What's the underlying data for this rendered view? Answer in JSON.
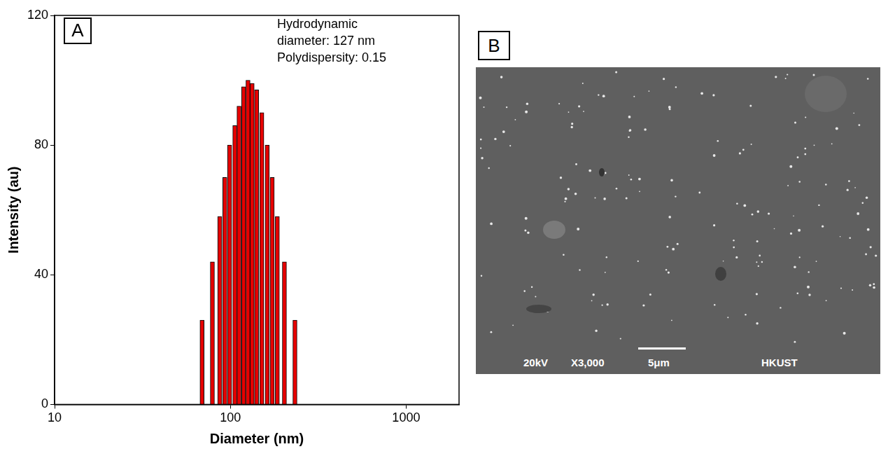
{
  "chart_data": {
    "type": "bar",
    "panel": "A",
    "x_label": "Diameter (nm)",
    "y_label": "Intensity (au)",
    "annotations": [
      "Hydrodynamic",
      "diameter: 127 nm",
      "Polydispersity: 0.15"
    ],
    "x": [
      69,
      79,
      87,
      93,
      99,
      106,
      112,
      119,
      126,
      133,
      141,
      151,
      162,
      173,
      185,
      203,
      233
    ],
    "values": [
      26,
      44,
      58,
      70,
      80,
      86,
      92,
      98,
      100,
      99,
      97,
      90,
      80,
      70,
      58,
      44,
      26
    ],
    "color": "#e60000",
    "log": "x",
    "xlim": [
      10,
      2000
    ],
    "xticks": [
      10,
      100,
      1000
    ],
    "ylim": [
      0,
      120
    ],
    "yticks": [
      0,
      40,
      80,
      120
    ],
    "grid": false
  },
  "image": {
    "panel": "B",
    "voltage": "20kV",
    "magnification": "X3,000",
    "scale_bar": "5μm",
    "label": "HKUST"
  }
}
